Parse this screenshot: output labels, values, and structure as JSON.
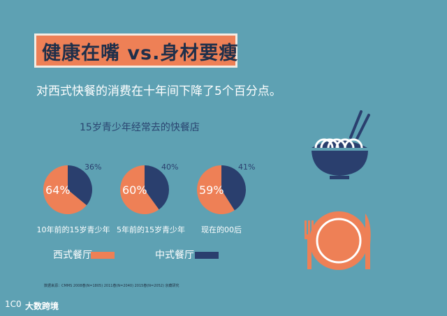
{
  "header": {
    "title": "健康在嘴  vs.身材要瘦",
    "subtitle": "对西式快餐的消费在十年间下降了5个百分点。"
  },
  "chart_data": {
    "type": "pie",
    "title": "15岁青少年经常去的快餐店",
    "series_names": [
      "西式餐厅",
      "中式餐厅"
    ],
    "colors": {
      "western": "#ee8056",
      "chinese": "#2a3f6e"
    },
    "pies": [
      {
        "label": "10年前的15岁青少年",
        "western": 64,
        "chinese": 36,
        "western_label": "64%",
        "chinese_label": "36%"
      },
      {
        "label": "5年前的15岁青少年",
        "western": 60,
        "chinese": 40,
        "western_label": "60%",
        "chinese_label": "40%"
      },
      {
        "label": "现在的00后",
        "western": 59,
        "chinese": 41,
        "western_label": "59%",
        "chinese_label": "41%"
      }
    ]
  },
  "footer": {
    "source": "数据来源：CMMS 2008春(N=1805)  2011春(N=2040)  2015春(N=2052) 京藏研究",
    "logo_mark": "1C0",
    "logo_name": "大数跨境"
  }
}
